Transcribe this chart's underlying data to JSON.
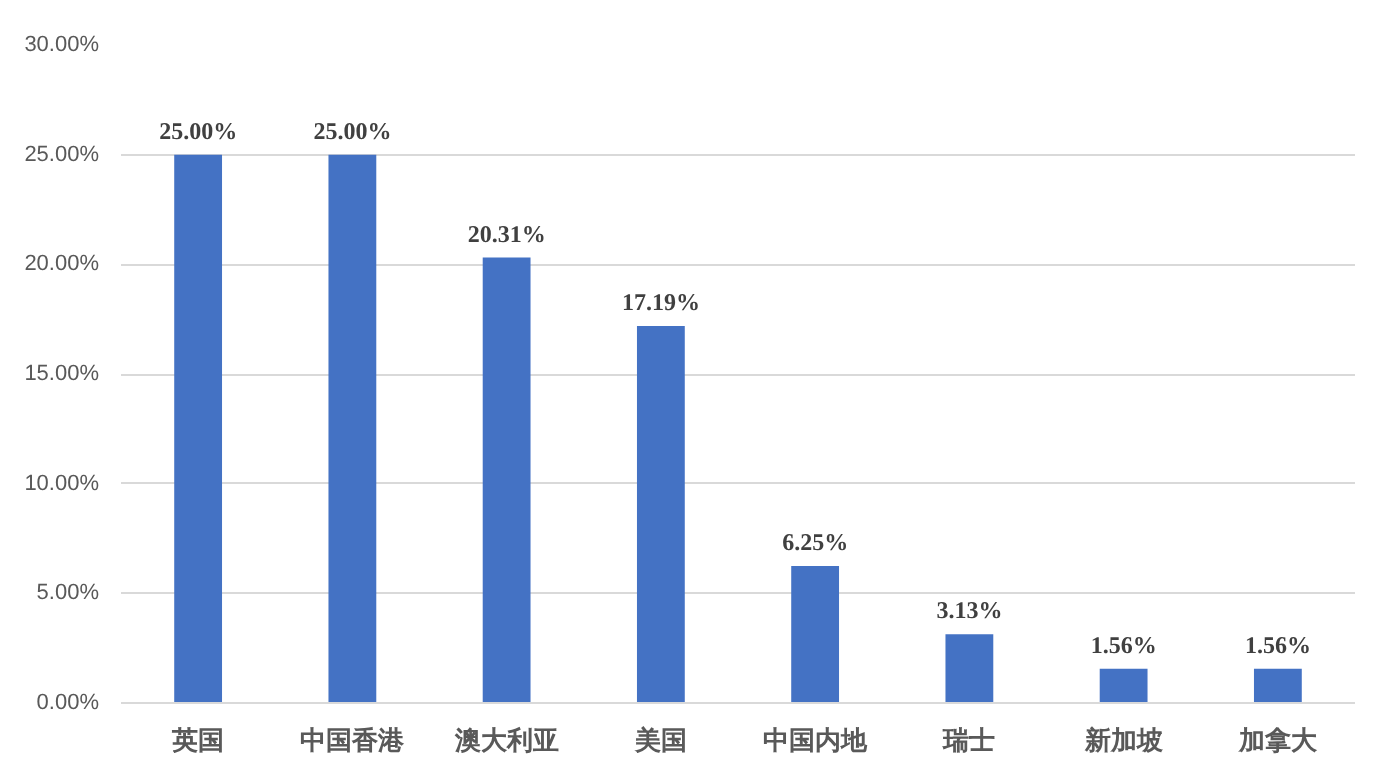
{
  "chart_data": {
    "type": "bar",
    "categories": [
      "英国",
      "中国香港",
      "澳大利亚",
      "美国",
      "中国内地",
      "瑞士",
      "新加坡",
      "加拿大"
    ],
    "values": [
      25.0,
      25.0,
      20.31,
      17.19,
      6.25,
      3.13,
      1.56,
      1.56
    ],
    "value_labels": [
      "25.00%",
      "25.00%",
      "20.31%",
      "17.19%",
      "6.25%",
      "3.13%",
      "1.56%",
      "1.56%"
    ],
    "color": "#4472c4",
    "ylim": [
      0,
      30
    ],
    "yticks": [
      {
        "value": 0,
        "label": "0.00%"
      },
      {
        "value": 5,
        "label": "5.00%"
      },
      {
        "value": 10,
        "label": "10.00%"
      },
      {
        "value": 15,
        "label": "15.00%"
      },
      {
        "value": 20,
        "label": "20.00%"
      },
      {
        "value": 25,
        "label": "25.00%"
      },
      {
        "value": 30,
        "label": "30.00%"
      }
    ],
    "grid": "y"
  }
}
